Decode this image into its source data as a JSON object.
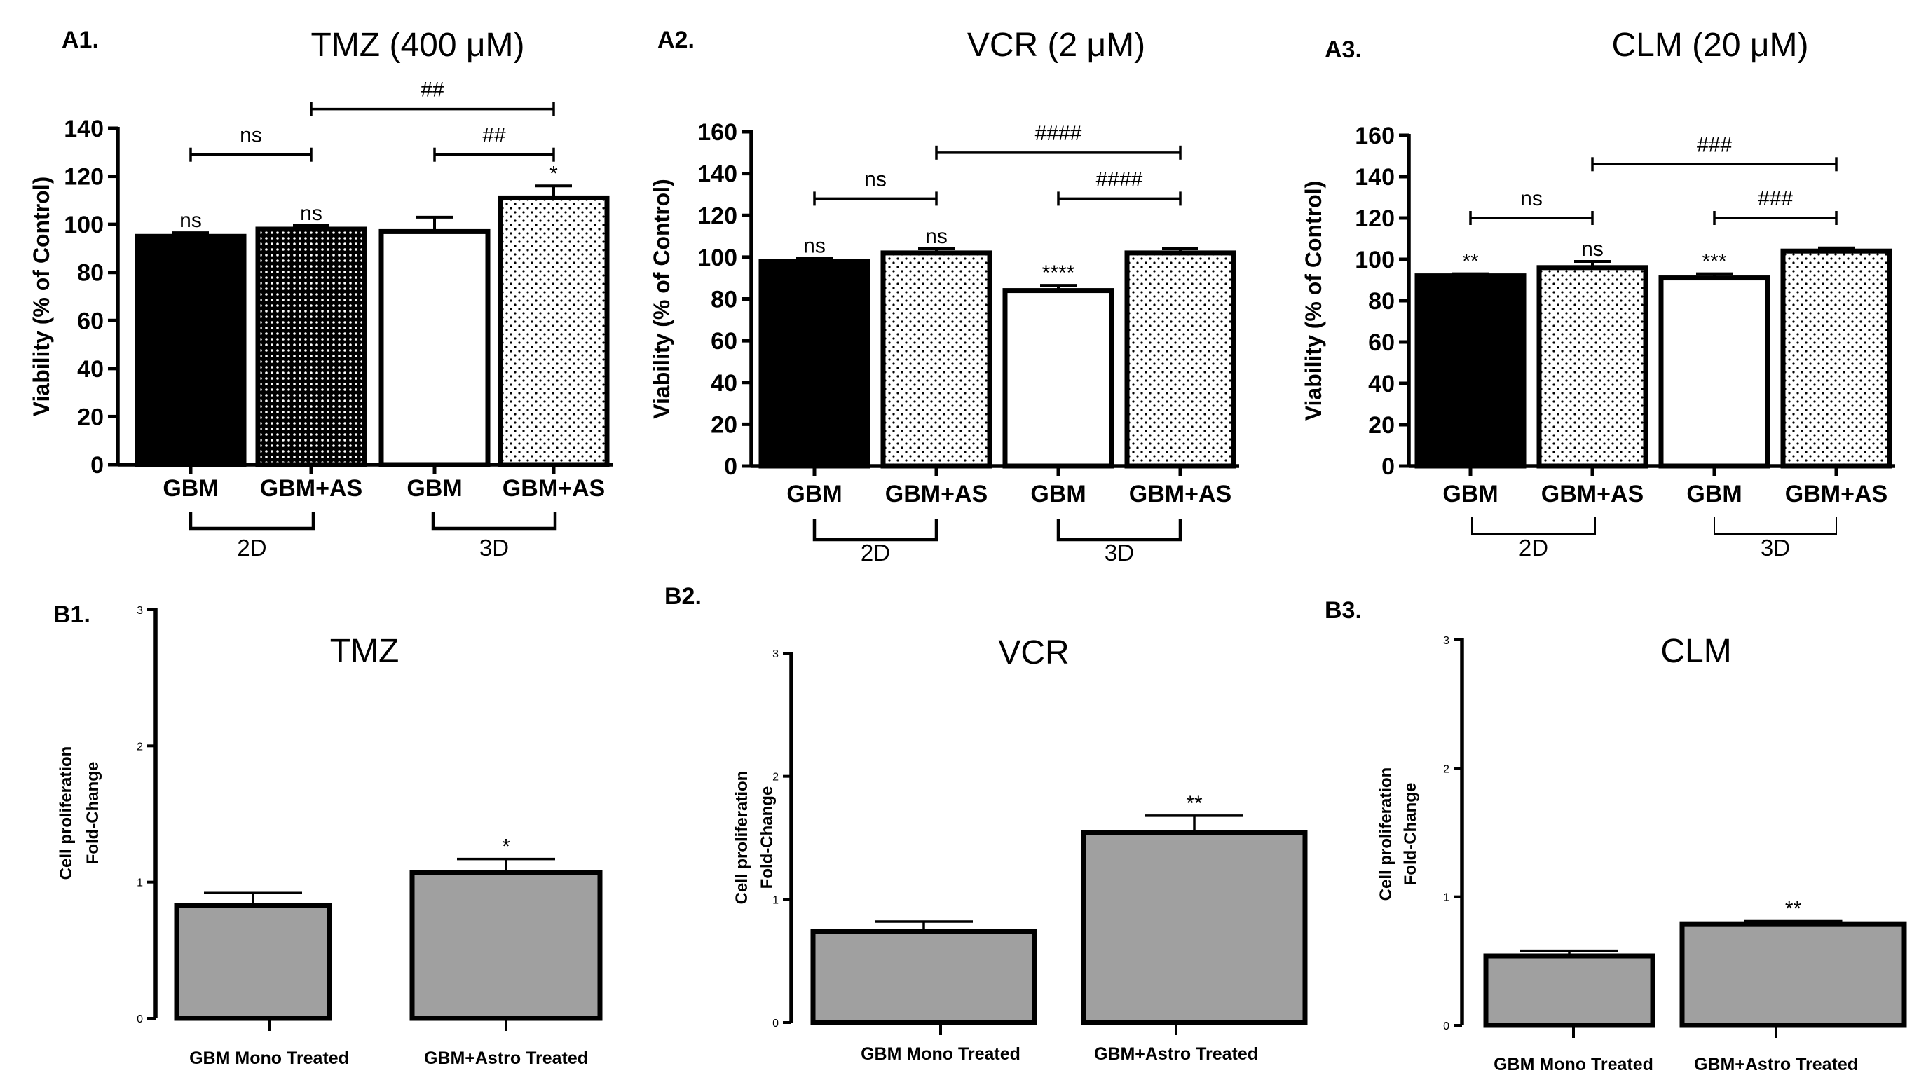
{
  "colors": {
    "black_fill": "#000000",
    "white_fill": "#ffffff",
    "gray_bar": "#a0a0a0",
    "stroke": "#000000"
  },
  "panels": {
    "A1": "A1.",
    "A2": "A2.",
    "A3": "A3.",
    "B1": "B1.",
    "B2": "B2.",
    "B3": "B3."
  },
  "chart_data": [
    {
      "id": "A1",
      "type": "bar",
      "title": "TMZ (400 μM)",
      "ylabel": "Viability (% of Control)",
      "ylim": [
        0,
        140
      ],
      "yticks": [
        0,
        20,
        40,
        60,
        80,
        100,
        120,
        140
      ],
      "categories": [
        "GBM",
        "GBM+AS",
        "GBM",
        "GBM+AS"
      ],
      "groups": [
        "2D",
        "3D"
      ],
      "fills": [
        "solid-black",
        "dense-dots",
        "white",
        "sparse-dots"
      ],
      "values": [
        95,
        98,
        97,
        111
      ],
      "errors": [
        1.5,
        1.5,
        6,
        5
      ],
      "bar_labels": [
        "ns",
        "ns",
        "",
        "*"
      ],
      "comparisons": [
        {
          "from": 0,
          "to": 1,
          "y": 129,
          "label": "ns"
        },
        {
          "from": 2,
          "to": 3,
          "y": 129,
          "label": "##"
        },
        {
          "from": 1,
          "to": 3,
          "y": 148,
          "label": "##"
        }
      ]
    },
    {
      "id": "A2",
      "type": "bar",
      "title": "VCR (2 μM)",
      "ylabel": "Viability (% of Control)",
      "ylim": [
        0,
        160
      ],
      "yticks": [
        0,
        20,
        40,
        60,
        80,
        100,
        120,
        140,
        160
      ],
      "categories": [
        "GBM",
        "GBM+AS",
        "GBM",
        "GBM+AS"
      ],
      "groups": [
        "2D",
        "3D"
      ],
      "fills": [
        "solid-black",
        "sparse-dots",
        "white",
        "sparse-dots"
      ],
      "values": [
        98,
        102,
        84,
        102
      ],
      "errors": [
        1.5,
        2,
        2.5,
        2
      ],
      "bar_labels": [
        "ns",
        "ns",
        "****",
        ""
      ],
      "comparisons": [
        {
          "from": 0,
          "to": 1,
          "y": 128,
          "label": "ns"
        },
        {
          "from": 2,
          "to": 3,
          "y": 128,
          "label": "####"
        },
        {
          "from": 1,
          "to": 3,
          "y": 150,
          "label": "####"
        }
      ]
    },
    {
      "id": "A3",
      "type": "bar",
      "title": "CLM (20 μM)",
      "ylabel": "Viability (% of Control)",
      "ylim": [
        0,
        160
      ],
      "yticks": [
        0,
        20,
        40,
        60,
        80,
        100,
        120,
        140,
        160
      ],
      "categories": [
        "GBM",
        "GBM+AS",
        "GBM",
        "GBM+AS"
      ],
      "groups": [
        "2D",
        "3D"
      ],
      "fills": [
        "solid-black",
        "sparse-dots",
        "white",
        "sparse-dots"
      ],
      "values": [
        92,
        96,
        91,
        104
      ],
      "errors": [
        1,
        3,
        2,
        1.5
      ],
      "bar_labels": [
        "**",
        "ns",
        "***",
        ""
      ],
      "comparisons": [
        {
          "from": 0,
          "to": 1,
          "y": 120,
          "label": "ns"
        },
        {
          "from": 2,
          "to": 3,
          "y": 120,
          "label": "###"
        },
        {
          "from": 1,
          "to": 3,
          "y": 146,
          "label": "###"
        }
      ]
    },
    {
      "id": "B1",
      "type": "bar",
      "title": "TMZ",
      "ylabel": "Cell proliferation",
      "ylabel2": "Fold-Change",
      "ylim": [
        0,
        3
      ],
      "yticks": [
        0,
        1,
        2,
        3
      ],
      "categories": [
        "GBM Mono Treated",
        "GBM+Astro Treated"
      ],
      "values": [
        0.83,
        1.07
      ],
      "errors": [
        0.09,
        0.1
      ],
      "bar_labels": [
        "",
        "*"
      ]
    },
    {
      "id": "B2",
      "type": "bar",
      "title": "VCR",
      "ylabel": "Cell proliferation",
      "ylabel2": "Fold-Change",
      "ylim": [
        0,
        3
      ],
      "yticks": [
        0,
        1,
        2,
        3
      ],
      "categories": [
        "GBM Mono Treated",
        "GBM+Astro Treated"
      ],
      "values": [
        0.74,
        1.54
      ],
      "errors": [
        0.08,
        0.14
      ],
      "bar_labels": [
        "",
        "**"
      ]
    },
    {
      "id": "B3",
      "type": "bar",
      "title": "CLM",
      "ylabel": "Cell proliferation",
      "ylabel2": "Fold-Change",
      "ylim": [
        0,
        3
      ],
      "yticks": [
        0,
        1,
        2,
        3
      ],
      "categories": [
        "GBM Mono Treated",
        "GBM+Astro Treated"
      ],
      "values": [
        0.54,
        0.79
      ],
      "errors": [
        0.04,
        0.02
      ],
      "bar_labels": [
        "",
        "**"
      ]
    }
  ]
}
